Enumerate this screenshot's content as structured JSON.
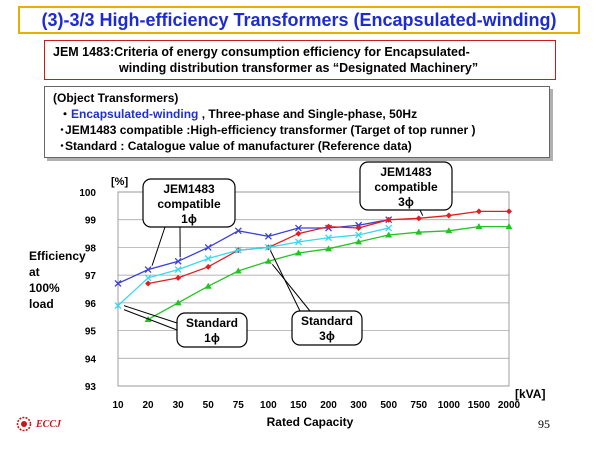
{
  "title": "(3)-3/3 High-efficiency Transformers (Encapsulated-winding)",
  "jem_box": {
    "line1": "JEM 1483:Criteria of energy consumption efficiency for Encapsulated-",
    "line2": "winding distribution transformer as “Designated Machinery”"
  },
  "object_box": {
    "heading": "(Object Transformers)",
    "items": [
      {
        "bullet": "・",
        "highlight": "Encapsulated-winding",
        "rest": " ,  Three-phase and Single-phase,  50Hz"
      },
      {
        "bullet": "･",
        "highlight": "",
        "rest": "JEM1483 compatible :High-efficiency transformer (Target of top runner )"
      },
      {
        "bullet": "･",
        "highlight": "",
        "rest": "Standard : Catalogue value of manufacturer (Reference data)"
      }
    ]
  },
  "callouts": {
    "jem_1ph": [
      "JEM1483",
      "compatible",
      "1ϕ"
    ],
    "jem_3ph": [
      "JEM1483",
      "compatible",
      "3ϕ"
    ],
    "std_1ph": [
      "Standard",
      "1ϕ"
    ],
    "std_3ph": [
      "Standard",
      "3ϕ"
    ]
  },
  "colors": {
    "title": "#1d2bd1",
    "jem_1ph": "#3a3fd6",
    "jem_3ph": "#e02020",
    "std_1ph": "#3ad8f0",
    "std_3ph": "#22c422"
  },
  "page_number": "95",
  "logo_text": "ECCJ",
  "chart_data": {
    "type": "line",
    "title": "",
    "xlabel": "Rated Capacity",
    "x_unit": "[kVA]",
    "ylabel": [
      "Efficiency",
      "at",
      "100%",
      " load"
    ],
    "y_unit": "[%]",
    "ylim": [
      93,
      100
    ],
    "yticks": [
      "100",
      "99",
      "98",
      "97",
      "96",
      "95",
      "94",
      "93"
    ],
    "categories": [
      "10",
      "20",
      "30",
      "50",
      "75",
      "100",
      "150",
      "200",
      "300",
      "500",
      "750",
      "1000",
      "1500",
      "2000"
    ],
    "grid": true,
    "series": [
      {
        "name": "JEM1483 compatible 1ϕ",
        "key": "jem_1ph",
        "marker": "x",
        "values": [
          96.7,
          97.2,
          97.5,
          98.0,
          98.6,
          98.4,
          98.7,
          98.7,
          98.8,
          99.0,
          null,
          null,
          null,
          null
        ]
      },
      {
        "name": "JEM1483 compatible 3ϕ",
        "key": "jem_3ph",
        "marker": "diamond",
        "values": [
          null,
          96.7,
          96.9,
          97.3,
          97.9,
          98.0,
          98.5,
          98.75,
          98.7,
          99.0,
          99.05,
          99.15,
          99.3,
          99.3
        ]
      },
      {
        "name": "Standard 1ϕ",
        "key": "std_1ph",
        "marker": "x",
        "values": [
          95.9,
          96.9,
          97.2,
          97.6,
          97.9,
          98.0,
          98.2,
          98.35,
          98.45,
          98.7,
          null,
          null,
          null,
          null
        ]
      },
      {
        "name": "Standard 3ϕ",
        "key": "std_3ph",
        "marker": "triangle",
        "values": [
          null,
          95.4,
          96.0,
          96.6,
          97.15,
          97.5,
          97.8,
          97.95,
          98.2,
          98.45,
          98.55,
          98.6,
          98.75,
          98.75
        ]
      }
    ]
  }
}
